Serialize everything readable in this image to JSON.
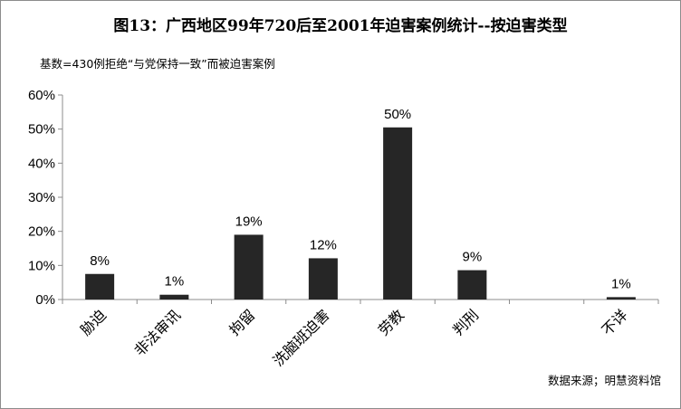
{
  "chart_data": {
    "type": "bar",
    "title": "图13：广西地区99年720后至2001年迫害案例统计--按迫害类型",
    "subtitle": "基数=430例拒绝“与党保持一致”而被迫害案例",
    "source": "数据来源；明慧资料馆",
    "categories": [
      "胁迫",
      "非法审讯",
      "拘留",
      "洗脑班迫害",
      "劳教",
      "判刑",
      "",
      "不详"
    ],
    "values": [
      7.5,
      1.4,
      19,
      12.1,
      50.5,
      8.6,
      0,
      0.7
    ],
    "data_labels": [
      "8%",
      "1%",
      "19%",
      "12%",
      "50%",
      "9%",
      "",
      "1%"
    ],
    "ylim": [
      0,
      60
    ],
    "yticks": [
      0,
      10,
      20,
      30,
      40,
      50,
      60
    ],
    "ytick_labels": [
      "0%",
      "10%",
      "20%",
      "30%",
      "40%",
      "50%",
      "60%"
    ],
    "xlabel": "",
    "ylabel": "",
    "grid": false,
    "legend": "none",
    "bar_color": "#262626"
  }
}
